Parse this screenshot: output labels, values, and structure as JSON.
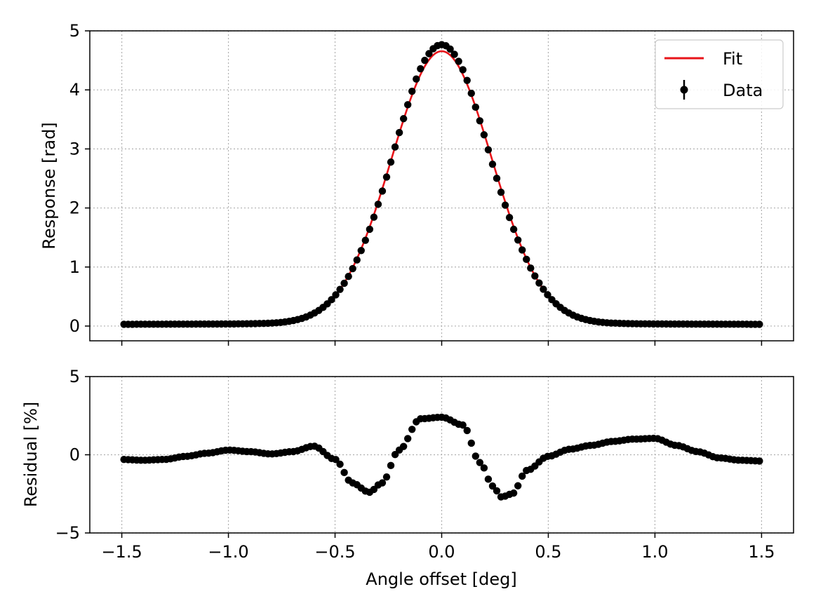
{
  "chart_data": [
    {
      "panel": "main",
      "type": "scatter",
      "xlabel": "Angle offset [deg]",
      "ylabel": "Response [rad]",
      "xlim": [
        -1.65,
        1.65
      ],
      "ylim": [
        -0.25,
        5.0
      ],
      "xticks": [
        -1.5,
        -1.0,
        -0.5,
        0.0,
        0.5,
        1.0,
        1.5
      ],
      "xtick_labels": [
        "−1.5",
        "−1.0",
        "−0.5",
        "0.0",
        "0.5",
        "1.0",
        "1.5"
      ],
      "yticks": [
        0,
        1,
        2,
        3,
        4,
        5
      ],
      "ytick_labels": [
        "0",
        "1",
        "2",
        "3",
        "4",
        "5"
      ],
      "grid": true,
      "legend": {
        "placement": "top-right",
        "entries": [
          {
            "label": "Fit",
            "style": "line",
            "color": "#e8141a"
          },
          {
            "label": "Data",
            "style": "errorbar-marker",
            "color": "#000000"
          }
        ]
      },
      "series": [
        {
          "name": "Fit",
          "style": "line",
          "color": "#e8141a",
          "model": {
            "form": "gaussian_plus_baseline",
            "amplitude": 4.62,
            "center_deg": 0.0,
            "sigma_deg": 0.235,
            "baseline": 0.035
          }
        },
        {
          "name": "Data",
          "style": "marker",
          "color": "#000000",
          "x_start": -1.49,
          "x_end": 1.49,
          "n_points": 151
        }
      ]
    },
    {
      "panel": "residual",
      "type": "scatter",
      "xlabel": "Angle offset [deg]",
      "ylabel": "Residual [%]",
      "xlim": [
        -1.65,
        1.65
      ],
      "ylim": [
        -5,
        5
      ],
      "xticks": [
        -1.5,
        -1.0,
        -0.5,
        0.0,
        0.5,
        1.0,
        1.5
      ],
      "xtick_labels": [
        "−1.5",
        "−1.0",
        "−0.5",
        "0.0",
        "0.5",
        "1.0",
        "1.5"
      ],
      "yticks": [
        -5,
        0,
        5
      ],
      "ytick_labels": [
        "−5",
        "0",
        "5"
      ],
      "grid": true,
      "series": [
        {
          "name": "Residual",
          "style": "marker",
          "color": "#000000",
          "x": [
            -1.5,
            -1.4,
            -1.3,
            -1.2,
            -1.1,
            -1.0,
            -0.9,
            -0.8,
            -0.7,
            -0.6,
            -0.5,
            -0.42,
            -0.34,
            -0.28,
            -0.2,
            -0.1,
            0.0,
            0.1,
            0.18,
            0.24,
            0.28,
            0.33,
            0.4,
            0.5,
            0.6,
            0.7,
            0.8,
            0.9,
            1.0,
            1.1,
            1.2,
            1.3,
            1.4,
            1.5
          ],
          "y": [
            -0.3,
            -0.35,
            -0.3,
            -0.1,
            0.1,
            0.3,
            0.2,
            0.05,
            0.2,
            0.55,
            -0.3,
            -1.8,
            -2.4,
            -1.8,
            0.3,
            2.3,
            2.4,
            1.9,
            -0.5,
            -2.0,
            -2.7,
            -2.5,
            -1.0,
            -0.1,
            0.35,
            0.6,
            0.85,
            1.0,
            1.05,
            0.6,
            0.2,
            -0.2,
            -0.35,
            -0.4
          ]
        }
      ]
    }
  ]
}
